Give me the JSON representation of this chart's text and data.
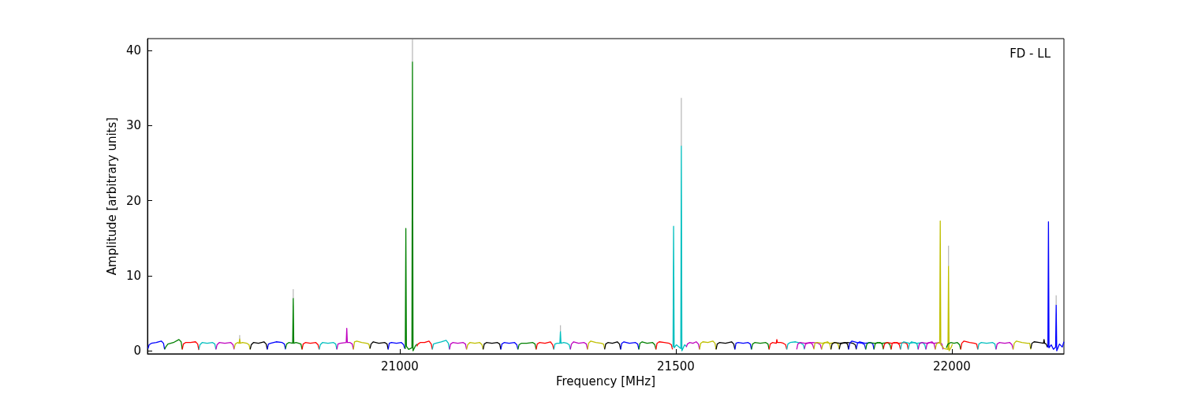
{
  "chart_data": {
    "type": "line",
    "xlabel": "Frequency [MHz]",
    "ylabel": "Amplitude [arbitrary units]",
    "annotations": [
      "FD - LL"
    ],
    "xlim": [
      20543,
      22203
    ],
    "ylim": [
      -0.4,
      41.6
    ],
    "xticks": [
      21000,
      21500,
      22000
    ],
    "yticks": [
      0,
      10,
      20,
      30,
      40
    ],
    "grid": false,
    "marker": "none",
    "series": [
      {
        "color": "#0000ff",
        "x": [
          20544,
          20546,
          20550,
          20559,
          20568,
          20572,
          20574
        ],
        "values": [
          0.3,
          0.8,
          1.0,
          1.1,
          1.3,
          1.0,
          0.2
        ]
      },
      {
        "color": "#008000",
        "x": [
          20574,
          20576,
          20580,
          20590,
          20600,
          20604,
          20606
        ],
        "values": [
          0.2,
          0.5,
          0.9,
          1.1,
          1.5,
          1.2,
          0.2
        ]
      },
      {
        "color": "#ff0000",
        "x": [
          20606,
          20608,
          20612,
          20621,
          20630,
          20634,
          20636
        ],
        "values": [
          0.2,
          0.9,
          1.1,
          1.1,
          1.2,
          0.9,
          0.1
        ]
      },
      {
        "color": "#00bfbf",
        "x": [
          20636,
          20638,
          20642,
          20651,
          20661,
          20665,
          20667
        ],
        "values": [
          0.2,
          0.8,
          1.1,
          1.0,
          1.1,
          0.9,
          0.2
        ]
      },
      {
        "color": "#bf00bf",
        "x": [
          20667,
          20669,
          20673,
          20683,
          20694,
          20698,
          20700
        ],
        "values": [
          0.2,
          0.8,
          1.1,
          1.0,
          1.1,
          0.8,
          0.2
        ]
      },
      {
        "color": "#bfbf00",
        "x": [
          20700,
          20702,
          20706,
          20709,
          20710,
          20711,
          20715,
          20723,
          20727,
          20729
        ],
        "values": [
          0.3,
          0.9,
          1.1,
          1.0,
          1.6,
          1.0,
          1.1,
          1.0,
          0.8,
          0.2
        ]
      },
      {
        "color": "#000000",
        "x": [
          20729,
          20731,
          20735,
          20744,
          20754,
          20758,
          20760
        ],
        "values": [
          0.2,
          0.8,
          1.1,
          1.0,
          1.2,
          0.9,
          0.2
        ]
      },
      {
        "color": "#0000ff",
        "x": [
          20760,
          20762,
          20766,
          20776,
          20787,
          20791,
          20793
        ],
        "values": [
          0.2,
          0.9,
          1.0,
          1.2,
          1.1,
          0.9,
          0.2
        ]
      },
      {
        "color": "#008000",
        "x": [
          20793,
          20795,
          20799,
          20806,
          20807,
          20808,
          20812,
          20817,
          20821,
          20823
        ],
        "values": [
          0.3,
          0.9,
          1.1,
          1.0,
          7.0,
          1.0,
          1.1,
          1.0,
          0.9,
          0.2
        ]
      },
      {
        "color": "#ff0000",
        "x": [
          20823,
          20825,
          20829,
          20838,
          20848,
          20852,
          20854
        ],
        "values": [
          0.2,
          0.9,
          1.1,
          1.0,
          1.1,
          0.8,
          0.2
        ]
      },
      {
        "color": "#00bfbf",
        "x": [
          20854,
          20856,
          20860,
          20870,
          20880,
          20884,
          20886
        ],
        "values": [
          0.2,
          0.8,
          1.1,
          1.0,
          1.1,
          0.9,
          0.2
        ]
      },
      {
        "color": "#bf00bf",
        "x": [
          20886,
          20888,
          20892,
          20903,
          20904,
          20905,
          20910,
          20914,
          20916
        ],
        "values": [
          0.2,
          0.9,
          1.0,
          1.1,
          3.0,
          1.1,
          1.1,
          0.9,
          0.2
        ]
      },
      {
        "color": "#bfbf00",
        "x": [
          20916,
          20918,
          20922,
          20931,
          20940,
          20944,
          20946
        ],
        "values": [
          0.2,
          1.2,
          1.3,
          1.1,
          1.0,
          0.9,
          0.3
        ]
      },
      {
        "color": "#000000",
        "x": [
          20946,
          20948,
          20952,
          20962,
          20973,
          20977,
          20979
        ],
        "values": [
          0.3,
          0.9,
          1.2,
          1.0,
          1.1,
          0.9,
          0.2
        ]
      },
      {
        "color": "#0000ff",
        "x": [
          20979,
          20981,
          20985,
          20994,
          21003,
          21007,
          21009
        ],
        "values": [
          0.2,
          1.0,
          1.1,
          1.0,
          1.1,
          0.8,
          0.3
        ]
      },
      {
        "color": "#008000",
        "x": [
          21009,
          21010,
          21011,
          21012,
          21016,
          21022,
          21023,
          21024,
          21028,
          21031
        ],
        "values": [
          0.5,
          0.3,
          16.3,
          0.6,
          0.2,
          0.4,
          38.5,
          0.0,
          0.6,
          0.9
        ]
      },
      {
        "color": "#ff0000",
        "x": [
          21031,
          21033,
          21037,
          21045,
          21053,
          21057,
          21059
        ],
        "values": [
          0.6,
          0.9,
          1.1,
          1.1,
          1.3,
          0.9,
          0.2
        ]
      },
      {
        "color": "#00bfbf",
        "x": [
          21059,
          21061,
          21065,
          21075,
          21084,
          21088,
          21090
        ],
        "values": [
          0.2,
          0.9,
          1.0,
          1.2,
          1.4,
          1.0,
          0.2
        ]
      },
      {
        "color": "#bf00bf",
        "x": [
          21090,
          21092,
          21096,
          21105,
          21115,
          21119,
          21121
        ],
        "values": [
          0.2,
          0.9,
          1.1,
          1.0,
          1.1,
          0.9,
          0.2
        ]
      },
      {
        "color": "#bfbf00",
        "x": [
          21121,
          21123,
          21127,
          21136,
          21145,
          21149,
          21151
        ],
        "values": [
          0.2,
          0.8,
          1.1,
          1.0,
          1.1,
          0.8,
          0.2
        ]
      },
      {
        "color": "#000000",
        "x": [
          21151,
          21153,
          21157,
          21167,
          21177,
          21181,
          21183
        ],
        "values": [
          0.2,
          0.9,
          1.1,
          1.0,
          1.1,
          0.9,
          0.2
        ]
      },
      {
        "color": "#0000ff",
        "x": [
          21183,
          21185,
          21189,
          21198,
          21208,
          21212,
          21214
        ],
        "values": [
          0.2,
          0.9,
          1.1,
          1.0,
          1.1,
          0.8,
          0.2
        ]
      },
      {
        "color": "#008000",
        "x": [
          21214,
          21216,
          21220,
          21230,
          21241,
          21245,
          21247
        ],
        "values": [
          0.2,
          0.8,
          1.0,
          1.0,
          1.1,
          0.9,
          0.2
        ]
      },
      {
        "color": "#ff0000",
        "x": [
          21247,
          21249,
          21253,
          21263,
          21273,
          21277,
          21279
        ],
        "values": [
          0.2,
          0.9,
          1.1,
          1.0,
          1.2,
          0.8,
          0.2
        ]
      },
      {
        "color": "#00bfbf",
        "x": [
          21279,
          21281,
          21285,
          21290,
          21291,
          21292,
          21297,
          21303,
          21307,
          21309
        ],
        "values": [
          0.2,
          0.9,
          1.0,
          1.0,
          2.6,
          1.0,
          1.1,
          1.0,
          0.8,
          0.2
        ]
      },
      {
        "color": "#bf00bf",
        "x": [
          21309,
          21311,
          21315,
          21324,
          21334,
          21338,
          21340
        ],
        "values": [
          0.2,
          0.9,
          1.2,
          1.0,
          1.1,
          0.9,
          0.2
        ]
      },
      {
        "color": "#bfbf00",
        "x": [
          21340,
          21342,
          21346,
          21355,
          21365,
          21369,
          21371
        ],
        "values": [
          0.2,
          1.0,
          1.3,
          1.1,
          1.0,
          0.9,
          0.3
        ]
      },
      {
        "color": "#000000",
        "x": [
          21371,
          21373,
          21377,
          21385,
          21394,
          21398,
          21400
        ],
        "values": [
          0.2,
          0.9,
          1.1,
          1.0,
          1.2,
          0.9,
          0.2
        ]
      },
      {
        "color": "#0000ff",
        "x": [
          21400,
          21402,
          21406,
          21416,
          21427,
          21431,
          21433
        ],
        "values": [
          0.2,
          1.0,
          1.2,
          1.0,
          1.1,
          0.9,
          0.2
        ]
      },
      {
        "color": "#008000",
        "x": [
          21433,
          21435,
          21439,
          21448,
          21458,
          21462,
          21464
        ],
        "values": [
          0.2,
          1.0,
          1.2,
          1.0,
          1.1,
          0.8,
          0.2
        ]
      },
      {
        "color": "#ff0000",
        "x": [
          21464,
          21466,
          21470,
          21479,
          21488,
          21492,
          21494
        ],
        "values": [
          0.2,
          1.0,
          1.2,
          1.1,
          1.0,
          0.8,
          0.2
        ]
      },
      {
        "color": "#00bfbf",
        "x": [
          21494,
          21495,
          21496,
          21497,
          21501,
          21509,
          21510,
          21511,
          21516,
          21519
        ],
        "values": [
          0.5,
          0.6,
          16.6,
          0.4,
          0.8,
          0.3,
          27.3,
          0.0,
          0.8,
          0.6
        ]
      },
      {
        "color": "#bf00bf",
        "x": [
          21519,
          21521,
          21525,
          21531,
          21537,
          21541,
          21543
        ],
        "values": [
          0.5,
          0.9,
          1.1,
          1.0,
          1.2,
          0.9,
          0.2
        ]
      },
      {
        "color": "#bfbf00",
        "x": [
          21543,
          21545,
          21549,
          21558,
          21567,
          21571,
          21573
        ],
        "values": [
          0.2,
          1.0,
          1.2,
          1.1,
          1.3,
          1.0,
          0.2
        ]
      },
      {
        "color": "#000000",
        "x": [
          21573,
          21575,
          21579,
          21590,
          21601,
          21605,
          21607
        ],
        "values": [
          0.2,
          0.9,
          1.1,
          1.0,
          1.2,
          0.9,
          0.2
        ]
      },
      {
        "color": "#0000ff",
        "x": [
          21607,
          21609,
          21613,
          21622,
          21631,
          21635,
          21637
        ],
        "values": [
          0.2,
          1.0,
          1.1,
          1.0,
          1.1,
          0.9,
          0.2
        ]
      },
      {
        "color": "#008000",
        "x": [
          21637,
          21639,
          21643,
          21653,
          21663,
          21667,
          21669
        ],
        "values": [
          0.2,
          0.9,
          1.1,
          1.0,
          1.1,
          0.9,
          0.2
        ]
      },
      {
        "color": "#ff0000",
        "x": [
          21669,
          21671,
          21675,
          21682,
          21683,
          21684,
          21690,
          21695,
          21699,
          21701
        ],
        "values": [
          0.2,
          0.9,
          1.1,
          1.0,
          1.5,
          1.1,
          1.1,
          1.0,
          0.8,
          0.2
        ]
      },
      {
        "color": "#00bfbf",
        "x": [
          21701,
          21703,
          21707,
          21717,
          21727,
          21731,
          21733
        ],
        "values": [
          0.2,
          0.9,
          1.1,
          1.2,
          1.0,
          0.8,
          0.2
        ]
      },
      {
        "color": "#bf00bf",
        "x": [
          21733,
          21735,
          21739,
          21748,
          21758,
          21762,
          21764
        ],
        "values": [
          0.3,
          0.9,
          1.0,
          1.1,
          1.0,
          0.8,
          0.2
        ]
      },
      {
        "color": "#bfbf00",
        "x": [
          21764,
          21766,
          21770,
          21780,
          21790,
          21794,
          21796
        ],
        "values": [
          0.2,
          0.8,
          1.1,
          1.0,
          1.1,
          0.9,
          0.3
        ]
      },
      {
        "color": "#000000",
        "x": [
          21796,
          21798,
          21802,
          21811,
          21821,
          21825,
          21827
        ],
        "values": [
          0.2,
          0.9,
          1.0,
          1.1,
          1.0,
          0.8,
          0.2
        ]
      },
      {
        "color": "#0000ff",
        "x": [
          21827,
          21829,
          21833,
          21843,
          21853,
          21857,
          21859
        ],
        "values": [
          0.3,
          1.0,
          1.2,
          1.0,
          1.1,
          0.9,
          0.2
        ]
      },
      {
        "color": "#008000",
        "x": [
          21859,
          21861,
          21865,
          21874,
          21884,
          21888,
          21890
        ],
        "values": [
          0.2,
          0.9,
          1.1,
          1.0,
          1.1,
          0.8,
          0.2
        ]
      },
      {
        "color": "#ff0000",
        "x": [
          21890,
          21892,
          21896,
          21905,
          21915,
          21919,
          21921
        ],
        "values": [
          0.2,
          1.0,
          1.1,
          1.0,
          1.1,
          0.9,
          0.2
        ]
      },
      {
        "color": "#00bfbf",
        "x": [
          21921,
          21923,
          21927,
          21937,
          21947,
          21951,
          21953
        ],
        "values": [
          0.2,
          0.9,
          1.2,
          1.0,
          1.1,
          0.8,
          0.2
        ]
      },
      {
        "color": "#bf00bf",
        "x": [
          21953,
          21955,
          21959,
          21968,
          21978,
          21982,
          21984
        ],
        "values": [
          0.2,
          0.9,
          1.1,
          1.0,
          1.1,
          0.9,
          0.2
        ]
      },
      {
        "color": "#bf00bf",
        "x": [
          21719,
          21721,
          21725,
          21734,
          21744,
          21748,
          21750
        ],
        "values": [
          0.2,
          0.9,
          1.1,
          1.0,
          1.1,
          0.8,
          0.3
        ]
      },
      {
        "color": "#bfbf00",
        "x": [
          21750,
          21752,
          21756,
          21765,
          21775,
          21779,
          21781
        ],
        "values": [
          0.2,
          1.0,
          1.1,
          1.0,
          1.2,
          0.9,
          0.2
        ]
      },
      {
        "color": "#000000",
        "x": [
          21781,
          21783,
          21787,
          21797,
          21807,
          21811,
          21813
        ],
        "values": [
          0.2,
          0.9,
          1.1,
          1.0,
          1.1,
          0.9,
          0.2
        ]
      },
      {
        "color": "#0000ff",
        "x": [
          21813,
          21815,
          21819,
          21828,
          21838,
          21842,
          21844
        ],
        "values": [
          0.2,
          1.0,
          1.3,
          1.1,
          1.0,
          0.8,
          0.2
        ]
      },
      {
        "color": "#008000",
        "x": [
          21844,
          21846,
          21850,
          21860,
          21870,
          21874,
          21876
        ],
        "values": [
          0.2,
          0.9,
          1.1,
          1.0,
          1.1,
          0.9,
          0.2
        ]
      },
      {
        "color": "#ff0000",
        "x": [
          21876,
          21878,
          21882,
          21891,
          21901,
          21905,
          21907
        ],
        "values": [
          0.3,
          0.9,
          1.1,
          1.0,
          1.1,
          0.8,
          0.2
        ]
      },
      {
        "color": "#00bfbf",
        "x": [
          21907,
          21909,
          21913,
          21923,
          21933,
          21937,
          21939
        ],
        "values": [
          0.2,
          1.0,
          1.2,
          1.0,
          1.1,
          0.9,
          0.2
        ]
      },
      {
        "color": "#bf00bf",
        "x": [
          21939,
          21941,
          21945,
          21954,
          21964,
          21968,
          21970
        ],
        "values": [
          0.2,
          0.9,
          1.1,
          1.0,
          1.2,
          0.9,
          0.2
        ]
      },
      {
        "color": "#bfbf00",
        "x": [
          21970,
          21972,
          21976,
          21978,
          21979,
          21980,
          21986,
          21993,
          21994,
          21995,
          21999,
          22001
        ],
        "values": [
          0.2,
          0.9,
          1.1,
          1.0,
          17.3,
          0.8,
          0.3,
          0.2,
          11.3,
          0.0,
          0.5,
          0.9
        ]
      },
      {
        "color": "#008000",
        "x": [
          21990,
          21993,
          21998,
          22004,
          22010,
          22014,
          22016
        ],
        "values": [
          0.4,
          0.9,
          1.1,
          1.0,
          1.1,
          0.8,
          0.2
        ]
      },
      {
        "color": "#ff0000",
        "x": [
          22016,
          22018,
          22022,
          22032,
          22041,
          22045,
          22047
        ],
        "values": [
          0.2,
          1.0,
          1.3,
          1.1,
          1.0,
          0.9,
          0.2
        ]
      },
      {
        "color": "#00bfbf",
        "x": [
          22047,
          22049,
          22053,
          22063,
          22074,
          22078,
          22080
        ],
        "values": [
          0.2,
          0.9,
          1.1,
          1.0,
          1.1,
          0.9,
          0.2
        ]
      },
      {
        "color": "#bf00bf",
        "x": [
          22080,
          22082,
          22086,
          22096,
          22105,
          22109,
          22111
        ],
        "values": [
          0.2,
          0.9,
          1.1,
          1.0,
          1.1,
          0.8,
          0.2
        ]
      },
      {
        "color": "#bfbf00",
        "x": [
          22111,
          22113,
          22117,
          22127,
          22137,
          22141,
          22143
        ],
        "values": [
          0.2,
          1.0,
          1.3,
          1.1,
          1.0,
          1.0,
          0.2
        ]
      },
      {
        "color": "#000000",
        "x": [
          22143,
          22145,
          22149,
          22158,
          22166,
          22167,
          22168,
          22171,
          22173
        ],
        "values": [
          0.3,
          1.0,
          1.2,
          1.1,
          1.0,
          1.5,
          1.0,
          0.9,
          0.5
        ]
      },
      {
        "color": "#0000ff",
        "x": [
          22173,
          22174,
          22175,
          22176,
          22180,
          22184,
          22188,
          22189,
          22190,
          22195,
          22200,
          22203
        ],
        "values": [
          0.6,
          0.5,
          17.2,
          0.4,
          0.8,
          0.2,
          0.5,
          6.1,
          0.0,
          0.9,
          0.5,
          1.2
        ]
      },
      {
        "color": "#bbbbbb",
        "x": [
          20710,
          20710,
          20720,
          20807,
          20807,
          20850,
          21023,
          21023,
          21100,
          21291,
          21291,
          21400,
          21510,
          21510,
          21700,
          21994,
          21994,
          22100,
          22189,
          22189
        ],
        "values": [
          1.6,
          2.1,
          null,
          7.0,
          8.2,
          null,
          38.5,
          41.5,
          null,
          2.6,
          3.4,
          null,
          27.3,
          33.7,
          null,
          11.3,
          14.0,
          null,
          6.1,
          7.4
        ]
      }
    ]
  }
}
